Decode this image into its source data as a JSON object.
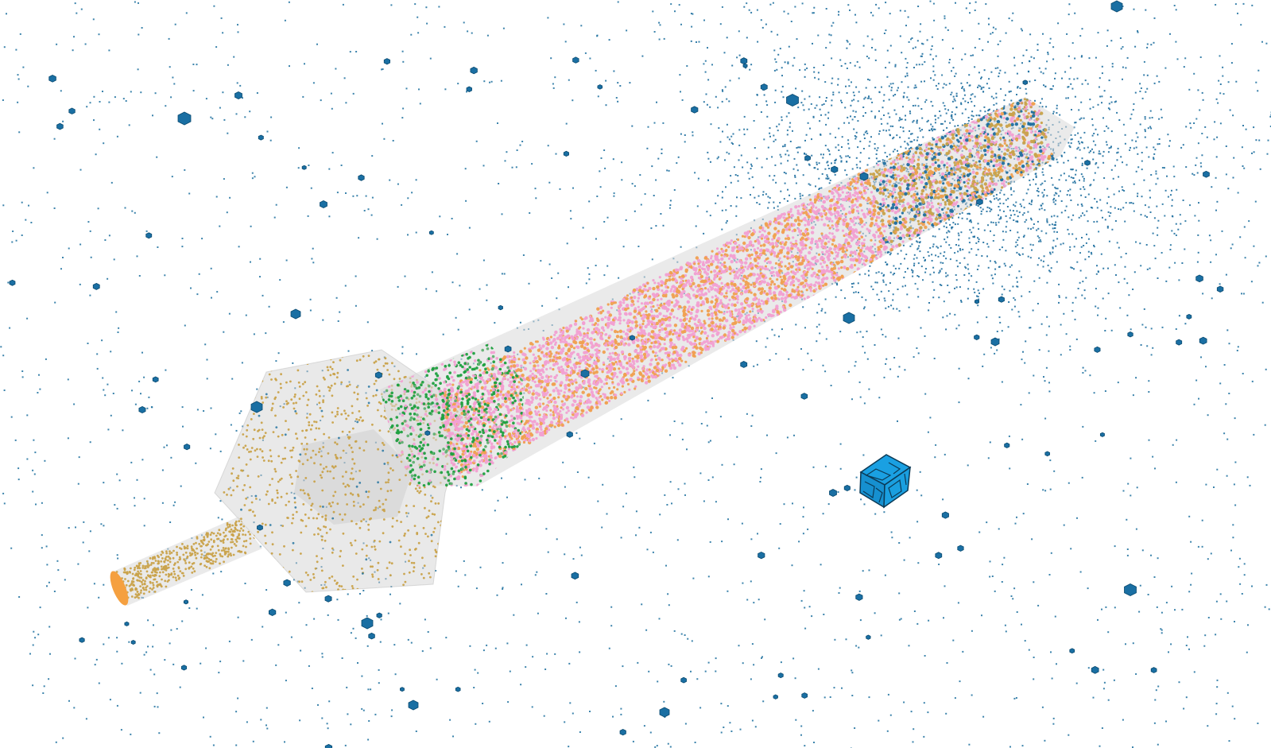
{
  "scene": {
    "background_color": "#ffffff",
    "colors": {
      "background_particles": "#1b6f9e",
      "scatter_cloud": "#1f6fa0",
      "small_cubes": "#1a6fa3",
      "large_cube_fill": "#1a9fe0",
      "large_cube_mesh": "#0b3a56",
      "tube_shell": "#d9d9d9",
      "hex_chamber_shell": "#cfcfcf",
      "tan_particles": "#c9a24a",
      "pink_particles": "#f2a0d2",
      "orange_particles": "#f0a050",
      "green_particles": "#1fa040",
      "cap_orange": "#f5a040"
    },
    "objects": [
      {
        "name": "background-particle-field",
        "icon": "particle-dots"
      },
      {
        "name": "blue-scatter-cloud",
        "icon": "particle-dots"
      },
      {
        "name": "narrow-inlet-tube",
        "icon": "cylinder"
      },
      {
        "name": "hexagonal-chamber",
        "icon": "hexagon-prism"
      },
      {
        "name": "green-particle-band",
        "icon": "particle-dots"
      },
      {
        "name": "main-tube",
        "icon": "cylinder"
      },
      {
        "name": "large-blue-mesh-cube",
        "icon": "cube"
      },
      {
        "name": "small-blue-cubes",
        "icon": "cube"
      }
    ]
  }
}
